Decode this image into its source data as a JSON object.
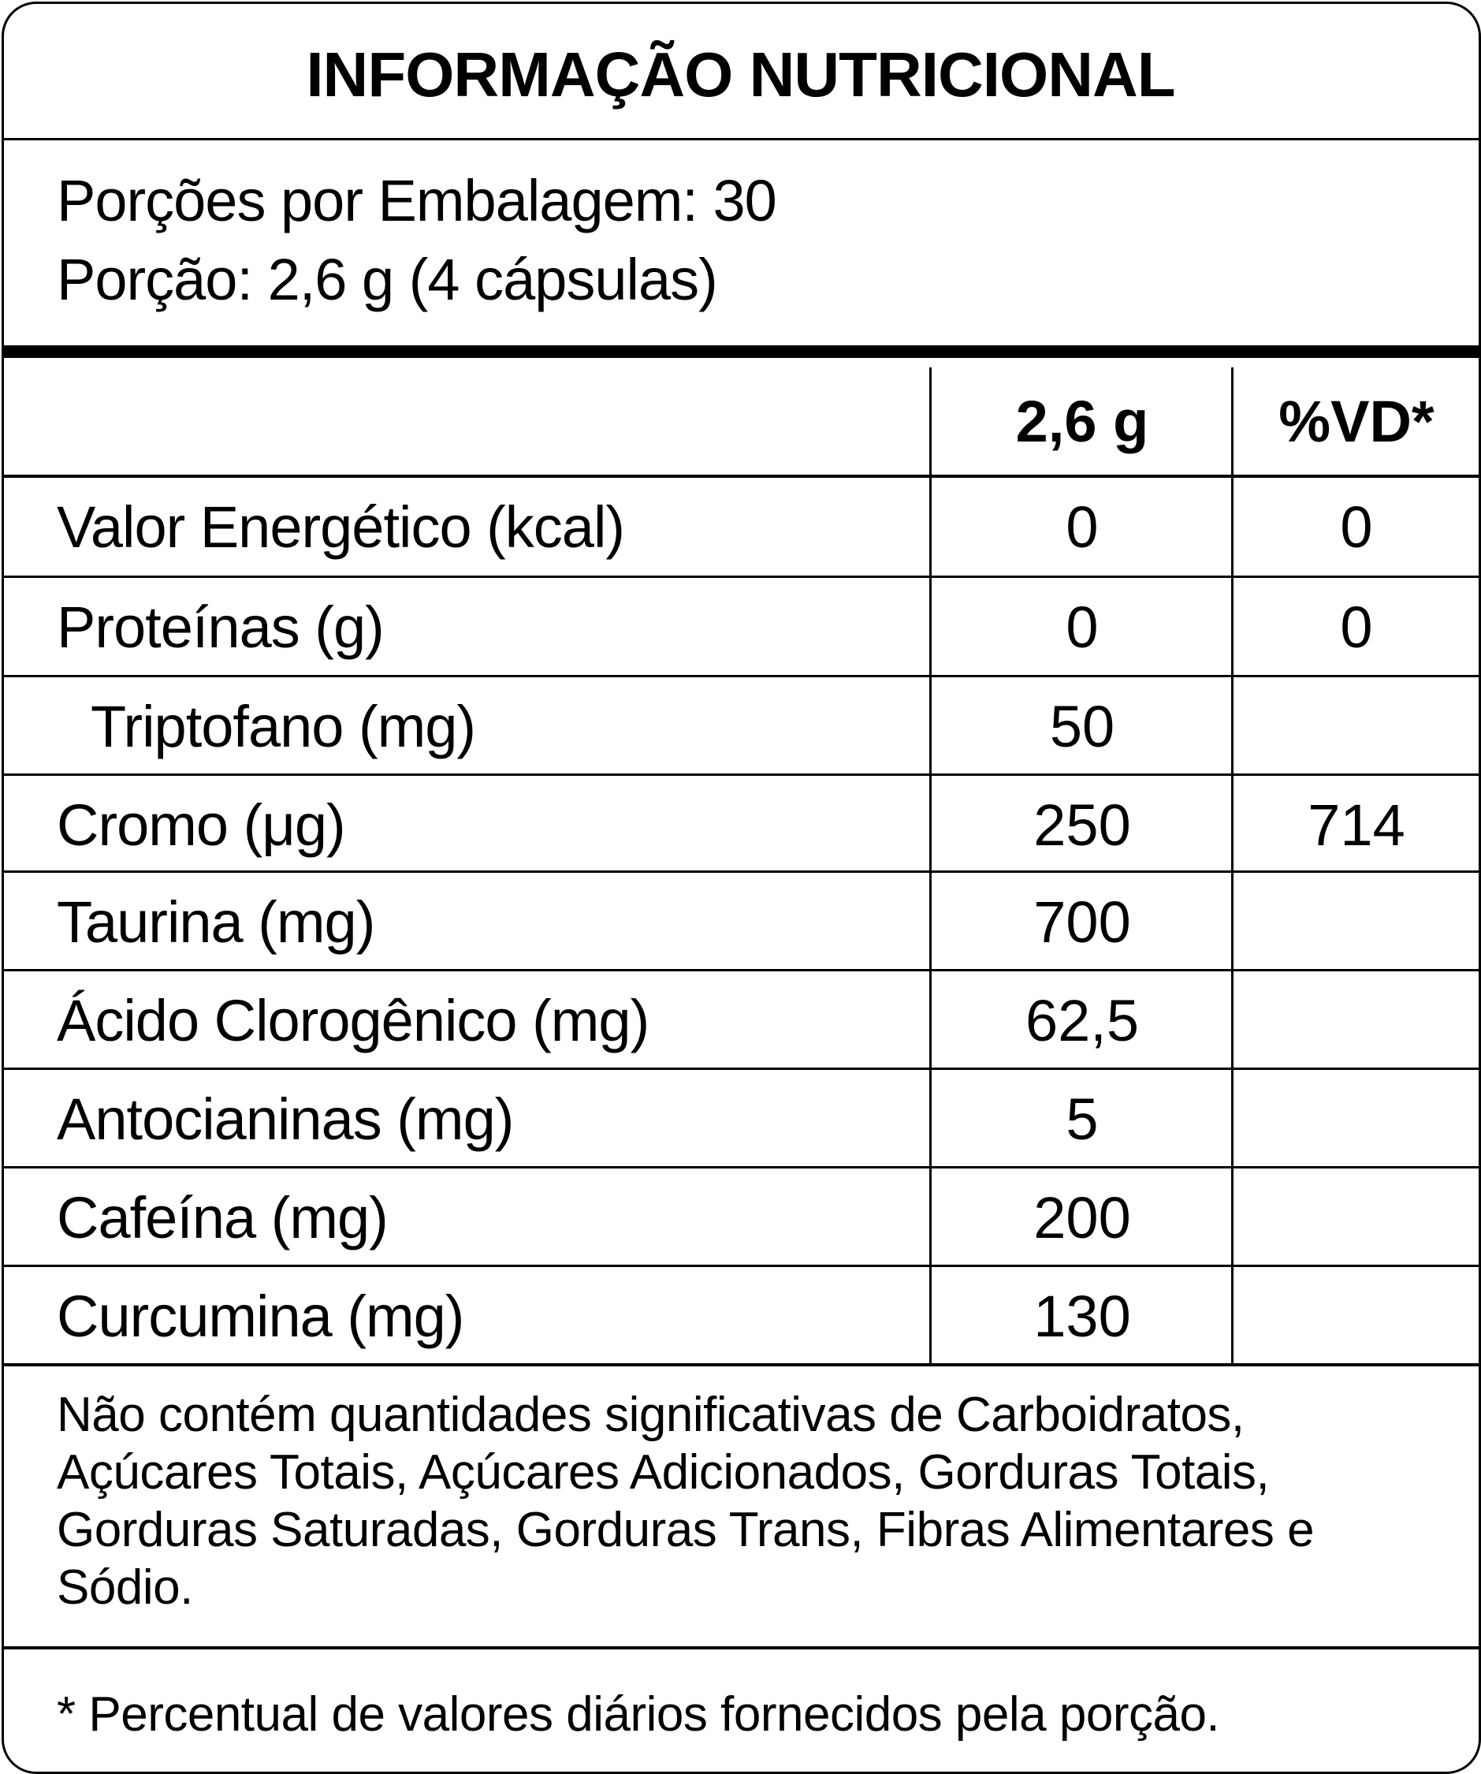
{
  "title": "INFORMAÇÃO NUTRICIONAL",
  "servings_per_package": "Porções por Embalagem: 30",
  "serving_size": "Porção: 2,6 g (4 cápsulas)",
  "table": {
    "headers": [
      "",
      "2,6 g",
      "%VD*"
    ],
    "rows": [
      {
        "label": "Valor Energético (kcal)",
        "amount": "0",
        "dv": "0"
      },
      {
        "label": "Proteínas (g)",
        "amount": "0",
        "dv": "0"
      },
      {
        "label": "Triptofano (mg)",
        "amount": "50",
        "dv": ""
      },
      {
        "label": "Cromo (μg)",
        "amount": "250",
        "dv": "714"
      },
      {
        "label": "Taurina (mg)",
        "amount": "700",
        "dv": ""
      },
      {
        "label": "Ácido Clorogênico (mg)",
        "amount": "62,5",
        "dv": ""
      },
      {
        "label": "Antocianinas (mg)",
        "amount": "5",
        "dv": ""
      },
      {
        "label": "Cafeína (mg)",
        "amount": "200",
        "dv": ""
      },
      {
        "label": "Curcumina (mg)",
        "amount": "130",
        "dv": ""
      }
    ]
  },
  "note": "Não contém quantidades significativas de Carboidratos, Açúcares Totais, Açúcares Adicionados, Gorduras Totais, Gorduras Saturadas, Gorduras Trans, Fibras Alimentares e Sódio.",
  "footnote": "* Percentual de valores diários fornecidos pela porção."
}
